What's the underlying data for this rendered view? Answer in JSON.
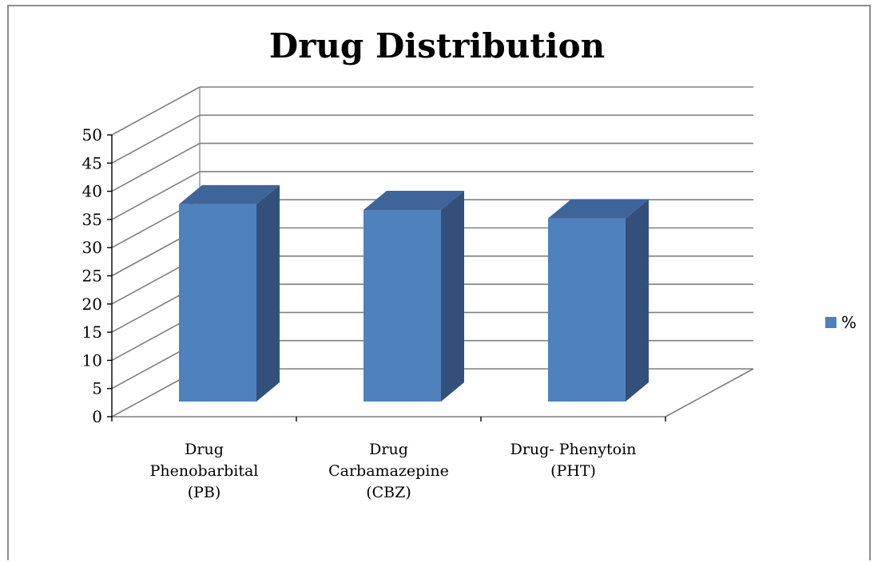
{
  "chart_data": {
    "type": "bar",
    "title": "Drug Distribution",
    "categories": [
      [
        "Drug",
        "Phenobarbital",
        "(PB)"
      ],
      [
        "Drug",
        "Carbamazepine",
        "(CBZ)"
      ],
      [
        "Drug- Phenytoin",
        "(PHT)"
      ]
    ],
    "series": [
      {
        "name": "%",
        "values": [
          35,
          34,
          32.5
        ]
      }
    ],
    "ylim": [
      0,
      50
    ],
    "yticks": [
      0,
      5,
      10,
      15,
      20,
      25,
      30,
      35,
      40,
      45,
      50
    ],
    "three_d": true,
    "grid": true,
    "legend_position": "right",
    "colors": {
      "bar_front": "#4f81bd",
      "bar_side": "#33507a",
      "bar_top": "#3f6499",
      "grid": "#7f7f7f"
    }
  }
}
